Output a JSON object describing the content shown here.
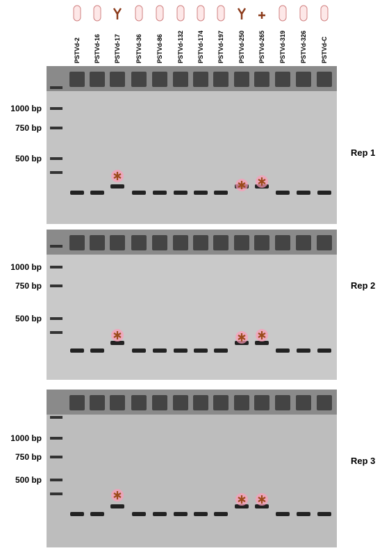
{
  "lanes": [
    "PSTVd-2",
    "PSTVd-16",
    "PSTVd-17",
    "PSTVd-36",
    "PSTVd-86",
    "PSTVd-132",
    "PSTVd-174",
    "PSTVd-197",
    "PSTVd-250",
    "PSTVd-265",
    "PSTVd-319",
    "PSTVd-326",
    "PSTVd-C"
  ],
  "panels": [
    {
      "label": "Rep 1",
      "markers": [
        "1000 bp",
        "750 bp",
        "500 bp"
      ]
    },
    {
      "label": "Rep 2",
      "markers": [
        "1000 bp",
        "750 bp",
        "500 bp"
      ]
    },
    {
      "label": "Rep 3",
      "markers": [
        "1000 bp",
        "750 bp",
        "500 bp"
      ]
    }
  ]
}
